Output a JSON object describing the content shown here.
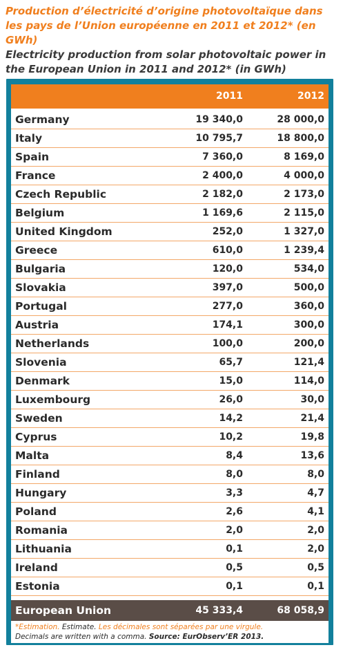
{
  "title_fr": "Production d’électricité d’origine photovoltaïque dans les pays de l’Union européenne en 2011 et 2012* (en GWh)",
  "title_en": "Electricity production from solar photovoltaic power in the European Union in 2011 and 2012* (in GWh)",
  "columns": [
    "2011",
    "2012"
  ],
  "rows": [
    {
      "country": "Germany",
      "y2011": "19 340,0",
      "y2012": "28 000,0"
    },
    {
      "country": "Italy",
      "y2011": "10 795,7",
      "y2012": "18 800,0"
    },
    {
      "country": "Spain",
      "y2011": "7 360,0",
      "y2012": "8 169,0"
    },
    {
      "country": "France",
      "y2011": "2 400,0",
      "y2012": "4 000,0"
    },
    {
      "country": "Czech Republic",
      "y2011": "2 182,0",
      "y2012": "2 173,0"
    },
    {
      "country": "Belgium",
      "y2011": "1 169,6",
      "y2012": "2 115,0"
    },
    {
      "country": "United Kingdom",
      "y2011": "252,0",
      "y2012": "1 327,0"
    },
    {
      "country": "Greece",
      "y2011": "610,0",
      "y2012": "1 239,4"
    },
    {
      "country": "Bulgaria",
      "y2011": "120,0",
      "y2012": "534,0"
    },
    {
      "country": "Slovakia",
      "y2011": "397,0",
      "y2012": "500,0"
    },
    {
      "country": "Portugal",
      "y2011": "277,0",
      "y2012": "360,0"
    },
    {
      "country": "Austria",
      "y2011": "174,1",
      "y2012": "300,0"
    },
    {
      "country": "Netherlands",
      "y2011": "100,0",
      "y2012": "200,0"
    },
    {
      "country": "Slovenia",
      "y2011": "65,7",
      "y2012": "121,4"
    },
    {
      "country": "Denmark",
      "y2011": "15,0",
      "y2012": "114,0"
    },
    {
      "country": "Luxembourg",
      "y2011": "26,0",
      "y2012": "30,0"
    },
    {
      "country": "Sweden",
      "y2011": "14,2",
      "y2012": "21,4"
    },
    {
      "country": "Cyprus",
      "y2011": "10,2",
      "y2012": "19,8"
    },
    {
      "country": "Malta",
      "y2011": "8,4",
      "y2012": "13,6"
    },
    {
      "country": "Finland",
      "y2011": "8,0",
      "y2012": "8,0"
    },
    {
      "country": "Hungary",
      "y2011": "3,3",
      "y2012": "4,7"
    },
    {
      "country": "Poland",
      "y2011": "2,6",
      "y2012": "4,1"
    },
    {
      "country": "Romania",
      "y2011": "2,0",
      "y2012": "2,0"
    },
    {
      "country": "Lithuania",
      "y2011": "0,1",
      "y2012": "2,0"
    },
    {
      "country": "Ireland",
      "y2011": "0,5",
      "y2012": "0,5"
    },
    {
      "country": "Estonia",
      "y2011": "0,1",
      "y2012": "0,1"
    }
  ],
  "total": {
    "country": "European Union",
    "y2011": "45 333,4",
    "y2012": "68 058,9"
  },
  "footnote": {
    "estimation_fr": "*Estimation.",
    "estimation_en": "Estimate.",
    "decimals_fr": "Les décimales sont séparées par une virgule.",
    "decimals_en": "Decimals are written with a comma.",
    "source": "Source: EurObserv’ER 2013."
  },
  "colors": {
    "accent": "#f07f1e",
    "frame": "#12809c",
    "total_bg": "#5a4d47",
    "rule": "#f3a767"
  }
}
